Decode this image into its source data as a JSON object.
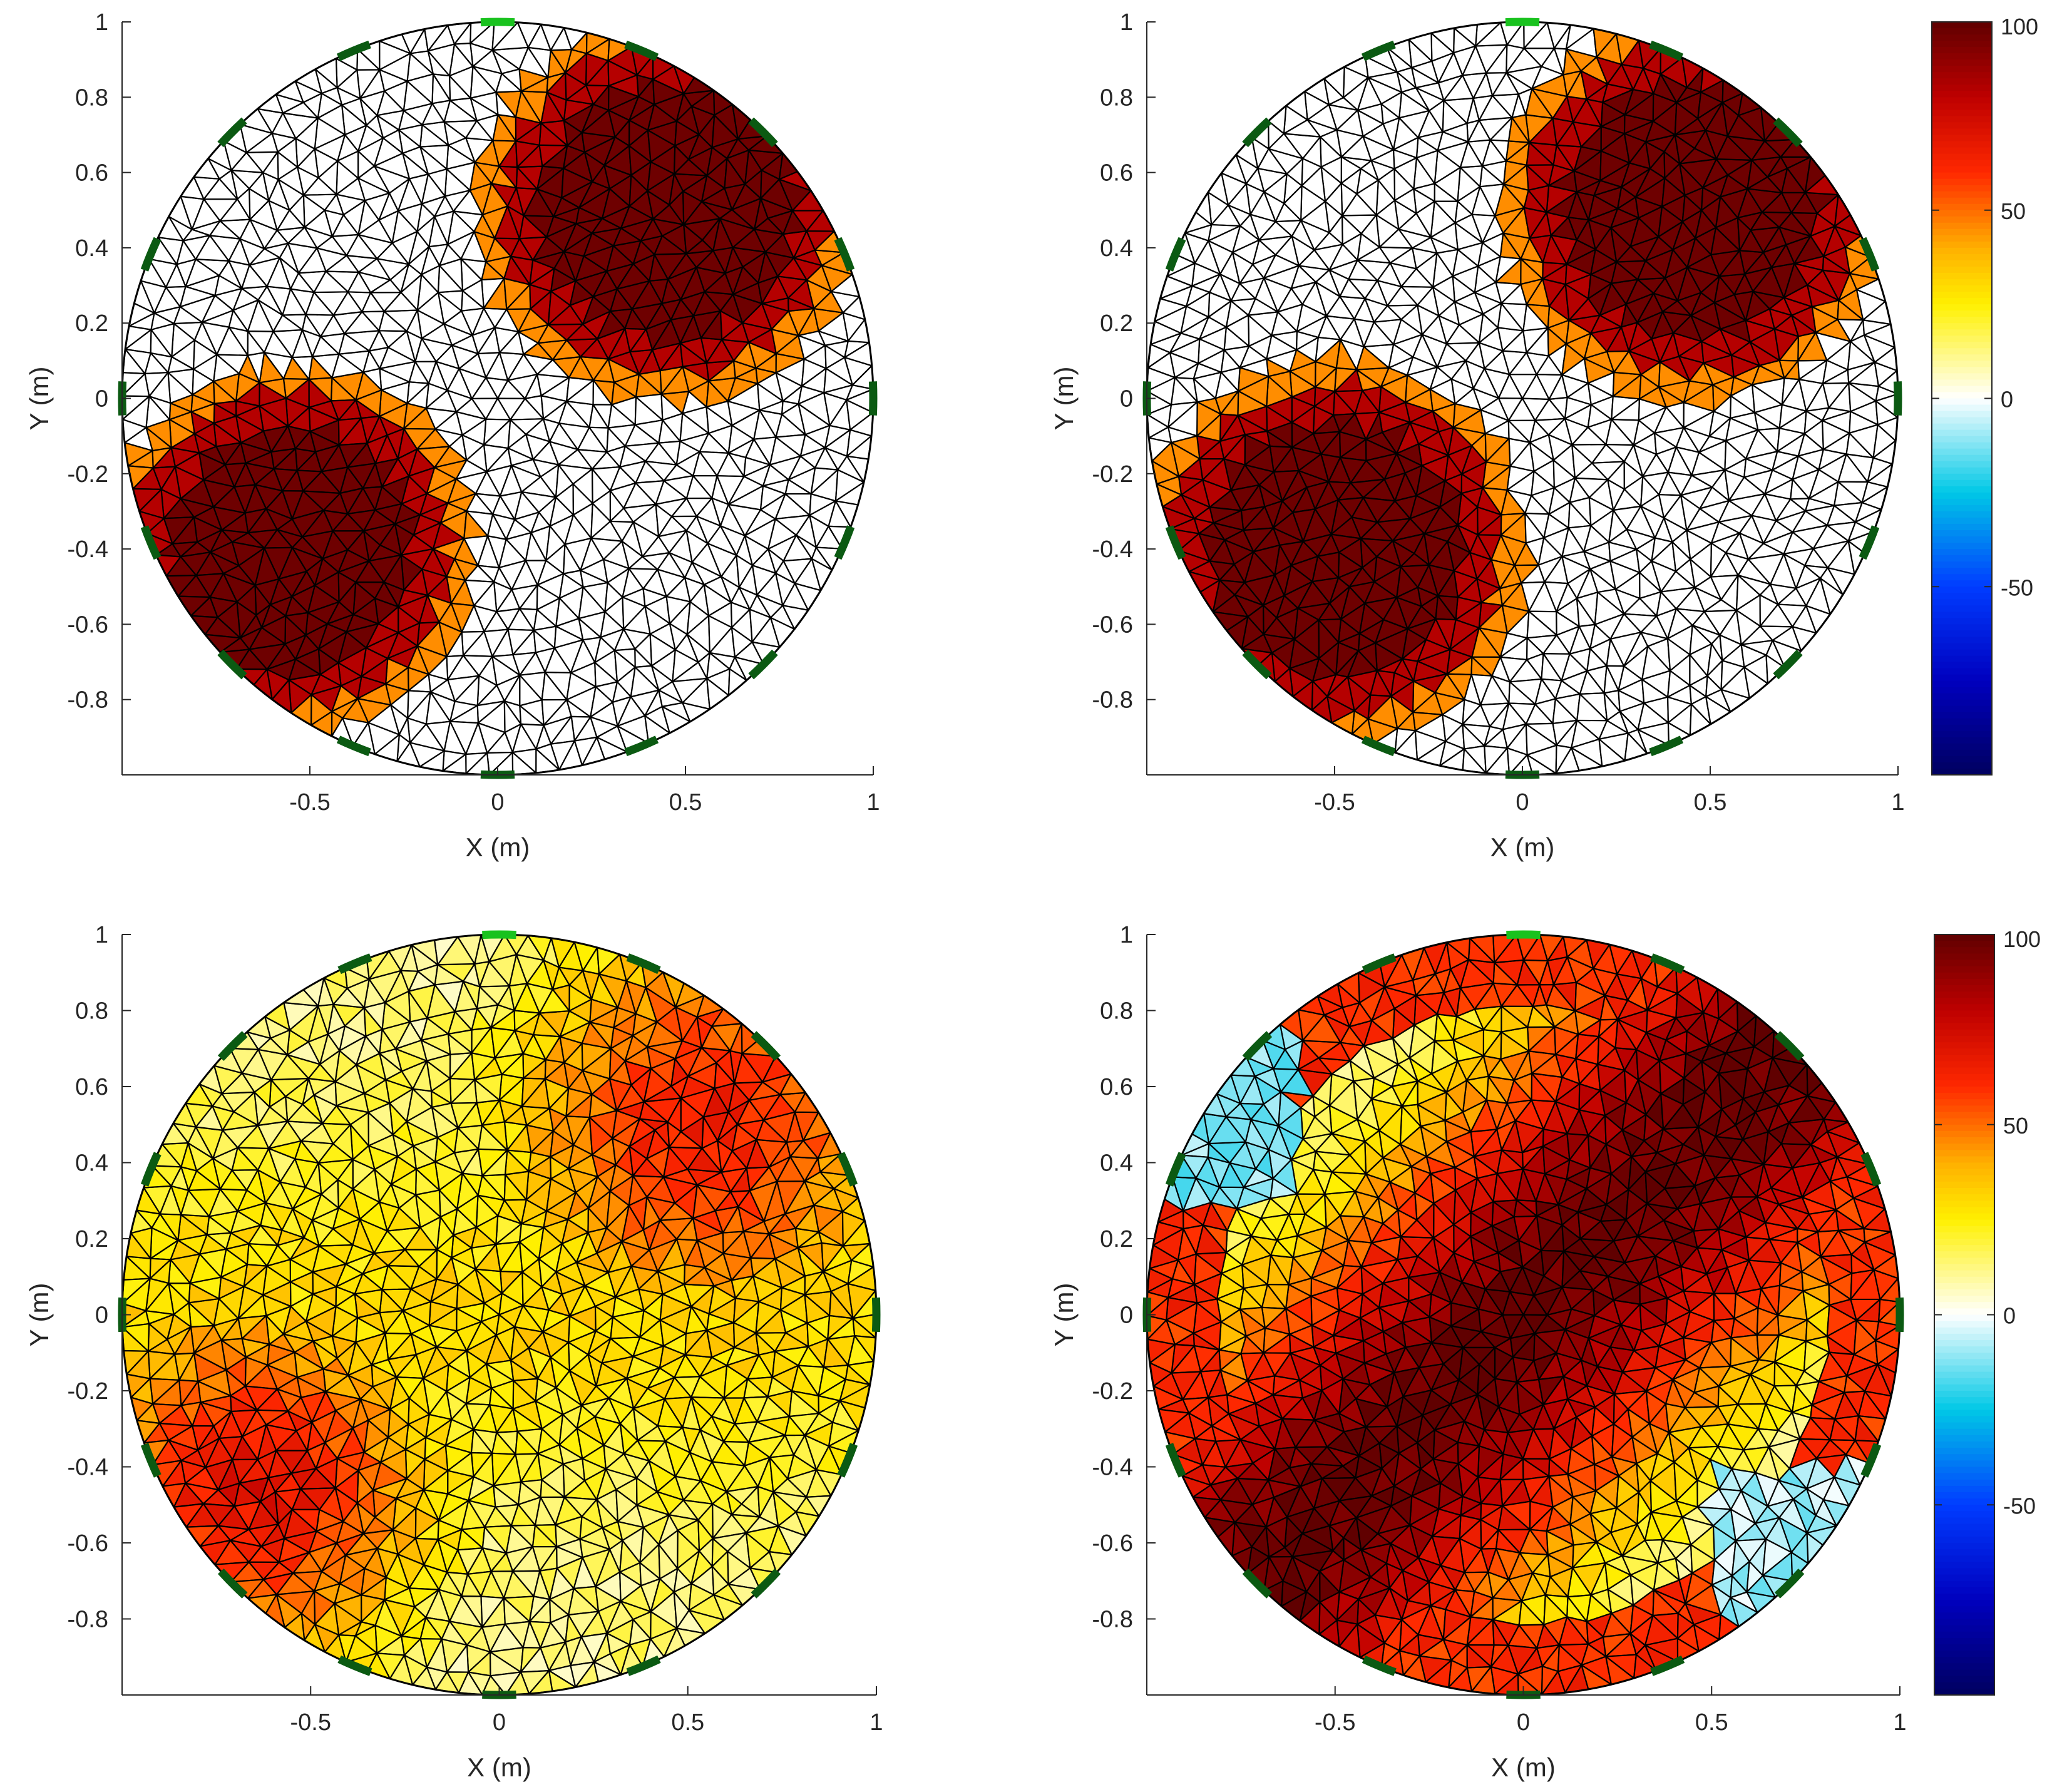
{
  "figure": {
    "title": "",
    "palette": {
      "ink": "#262626",
      "mesh_stroke": "#000000",
      "electrode_dark": "#0b5a12",
      "electrode_light": "#19c21e"
    }
  },
  "chart_data": [
    {
      "type": "heatmap",
      "panel": "top-left",
      "title": "",
      "xlabel": "X (m)",
      "ylabel": "Y (m)",
      "xlim": [
        -1,
        1
      ],
      "ylim": [
        -1,
        1
      ],
      "xticks": [
        "-0.5",
        "0",
        "0.5",
        "1"
      ],
      "yticks": [
        "-0.8",
        "-0.6",
        "-0.4",
        "-0.2",
        "0",
        "0.2",
        "0.4",
        "0.6",
        "0.8",
        "1"
      ],
      "mesh": "triangular FEM, circular domain radius 1",
      "electrodes": 16,
      "colorbar": false,
      "clim": [
        -100,
        100
      ],
      "style": "stepped",
      "inclusions": [
        {
          "x": 0.45,
          "y": 0.5,
          "radius": 0.42,
          "value": 100
        },
        {
          "x": -0.55,
          "y": -0.4,
          "radius": 0.4,
          "value": 100
        }
      ]
    },
    {
      "type": "heatmap",
      "panel": "top-right",
      "title": "",
      "xlabel": "X (m)",
      "ylabel": "Y (m)",
      "xlim": [
        -1,
        1
      ],
      "ylim": [
        -1,
        1
      ],
      "xticks": [
        "-0.5",
        "0",
        "0.5",
        "1"
      ],
      "yticks": [
        "-0.8",
        "-0.6",
        "-0.4",
        "-0.2",
        "0",
        "0.2",
        "0.4",
        "0.6",
        "0.8",
        "1"
      ],
      "mesh": "triangular FEM, circular domain radius 1",
      "electrodes": 16,
      "colorbar": true,
      "colorbar_ticks": [
        "100",
        "50",
        "0",
        "-50"
      ],
      "clim": [
        -100,
        100
      ],
      "style": "stepped",
      "inclusions": [
        {
          "x": 0.45,
          "y": 0.5,
          "radius": 0.42,
          "value": 100
        },
        {
          "x": -0.5,
          "y": -0.4,
          "radius": 0.42,
          "value": 100
        }
      ]
    },
    {
      "type": "heatmap",
      "panel": "bottom-left",
      "title": "",
      "xlabel": "X (m)",
      "ylabel": "Y (m)",
      "xlim": [
        -1,
        1
      ],
      "ylim": [
        -1,
        1
      ],
      "xticks": [
        "-0.5",
        "0",
        "0.5",
        "1"
      ],
      "yticks": [
        "-0.8",
        "-0.6",
        "-0.4",
        "-0.2",
        "0",
        "0.2",
        "0.4",
        "0.6",
        "0.8",
        "1"
      ],
      "mesh": "triangular FEM, circular domain radius 1",
      "electrodes": 16,
      "colorbar": false,
      "clim": [
        -100,
        100
      ],
      "style": "smooth",
      "inclusions": [
        {
          "x": 0.55,
          "y": 0.5,
          "radius": 0.55,
          "value": 65
        },
        {
          "x": -0.65,
          "y": -0.45,
          "radius": 0.5,
          "value": 70
        }
      ]
    },
    {
      "type": "heatmap",
      "panel": "bottom-right",
      "title": "",
      "xlabel": "X (m)",
      "ylabel": "Y (m)",
      "xlim": [
        -1,
        1
      ],
      "ylim": [
        -1,
        1
      ],
      "xticks": [
        "-0.5",
        "0",
        "0.5",
        "1"
      ],
      "yticks": [
        "-0.8",
        "-0.6",
        "-0.4",
        "-0.2",
        "0",
        "0.2",
        "0.4",
        "0.6",
        "0.8",
        "1"
      ],
      "mesh": "triangular FEM, circular domain radius 1",
      "electrodes": 16,
      "colorbar": true,
      "colorbar_ticks": [
        "100",
        "50",
        "0",
        "-50"
      ],
      "clim": [
        -100,
        100
      ],
      "style": "band",
      "inclusions": [
        {
          "x": 0.0,
          "y": 0.0,
          "radius": 0.5,
          "value": 100
        }
      ]
    }
  ]
}
